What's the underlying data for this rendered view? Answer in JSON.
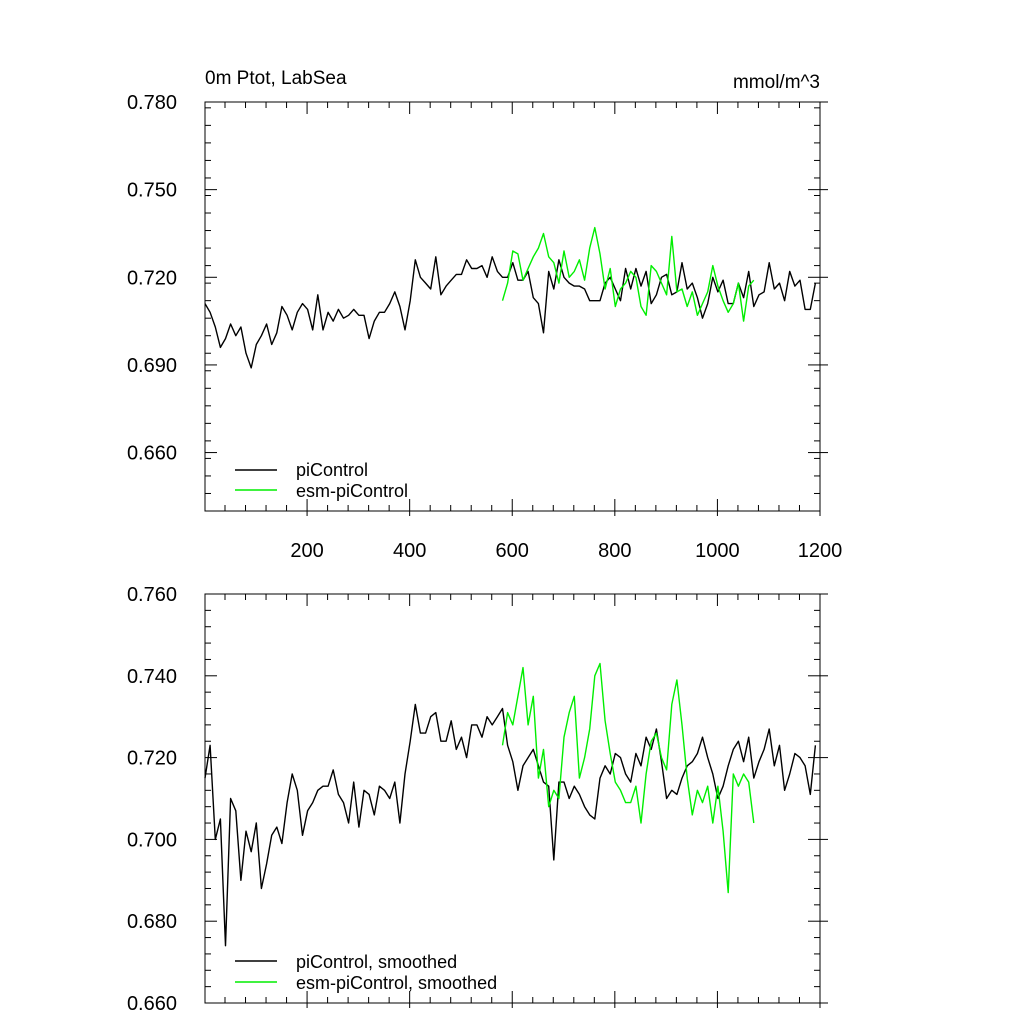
{
  "chart_data": [
    {
      "type": "line",
      "title_left": "0m Ptot, LabSea",
      "title_right": "mmol/m^3",
      "xlabel": "",
      "ylabel": "",
      "xlim": [
        1,
        1200
      ],
      "ylim": [
        0.64,
        0.78
      ],
      "x_ticks": [
        200,
        400,
        600,
        800,
        1000,
        1200
      ],
      "x_tick_labels": [
        "200",
        "400",
        "600",
        "800",
        "1000",
        "1200"
      ],
      "y_ticks": [
        0.66,
        0.69,
        0.72,
        0.75,
        0.78
      ],
      "y_tick_labels": [
        "0.660",
        "0.690",
        "0.720",
        "0.750",
        "0.780"
      ],
      "grid": false,
      "legend_position": "bottom-left",
      "series": [
        {
          "name": "piControl",
          "color": "#000000",
          "x_start": 1,
          "x_step": 10,
          "values": [
            0.711,
            0.708,
            0.703,
            0.696,
            0.699,
            0.704,
            0.7,
            0.703,
            0.694,
            0.689,
            0.697,
            0.7,
            0.704,
            0.697,
            0.701,
            0.71,
            0.707,
            0.702,
            0.708,
            0.711,
            0.709,
            0.702,
            0.714,
            0.702,
            0.708,
            0.705,
            0.709,
            0.706,
            0.707,
            0.709,
            0.707,
            0.707,
            0.699,
            0.705,
            0.708,
            0.708,
            0.711,
            0.715,
            0.71,
            0.702,
            0.712,
            0.726,
            0.72,
            0.718,
            0.716,
            0.727,
            0.714,
            0.717,
            0.719,
            0.721,
            0.721,
            0.726,
            0.723,
            0.723,
            0.724,
            0.72,
            0.727,
            0.722,
            0.72,
            0.72,
            0.725,
            0.719,
            0.719,
            0.722,
            0.713,
            0.711,
            0.701,
            0.722,
            0.716,
            0.726,
            0.72,
            0.718,
            0.717,
            0.717,
            0.716,
            0.712,
            0.712,
            0.712,
            0.718,
            0.72,
            0.716,
            0.712,
            0.723,
            0.716,
            0.723,
            0.717,
            0.722,
            0.711,
            0.714,
            0.72,
            0.721,
            0.714,
            0.715,
            0.725,
            0.716,
            0.718,
            0.713,
            0.706,
            0.711,
            0.72,
            0.715,
            0.719,
            0.711,
            0.711,
            0.718,
            0.713,
            0.722,
            0.71,
            0.714,
            0.715,
            0.725,
            0.716,
            0.718,
            0.712,
            0.722,
            0.717,
            0.719,
            0.709,
            0.709,
            0.718
          ]
        },
        {
          "name": "esm-piControl",
          "color": "#00ee00",
          "x_start": 581,
          "x_step": 10,
          "values": [
            0.712,
            0.718,
            0.729,
            0.728,
            0.719,
            0.723,
            0.727,
            0.73,
            0.735,
            0.727,
            0.725,
            0.718,
            0.729,
            0.72,
            0.722,
            0.726,
            0.719,
            0.73,
            0.737,
            0.728,
            0.716,
            0.723,
            0.71,
            0.716,
            0.718,
            0.722,
            0.72,
            0.71,
            0.707,
            0.724,
            0.722,
            0.718,
            0.714,
            0.734,
            0.715,
            0.716,
            0.71,
            0.715,
            0.707,
            0.711,
            0.715,
            0.724,
            0.717,
            0.712,
            0.708,
            0.711,
            0.718,
            0.705,
            0.717,
            0.719
          ]
        }
      ]
    },
    {
      "type": "line",
      "xlabel": "",
      "ylabel": "",
      "xlim": [
        1,
        1200
      ],
      "ylim": [
        0.66,
        0.76
      ],
      "x_ticks": [
        200,
        400,
        600,
        800,
        1000,
        1200
      ],
      "y_ticks": [
        0.66,
        0.68,
        0.7,
        0.72,
        0.74,
        0.76
      ],
      "y_tick_labels": [
        "0.660",
        "0.680",
        "0.700",
        "0.720",
        "0.740",
        "0.760"
      ],
      "grid": false,
      "legend_position": "bottom-left",
      "series": [
        {
          "name": "piControl, smoothed",
          "color": "#000000",
          "x_start": 1,
          "x_step": 10,
          "values": [
            0.715,
            0.723,
            0.7,
            0.705,
            0.674,
            0.71,
            0.707,
            0.69,
            0.702,
            0.697,
            0.704,
            0.688,
            0.694,
            0.701,
            0.703,
            0.699,
            0.709,
            0.716,
            0.712,
            0.701,
            0.707,
            0.709,
            0.712,
            0.713,
            0.713,
            0.717,
            0.711,
            0.709,
            0.704,
            0.714,
            0.703,
            0.712,
            0.711,
            0.706,
            0.713,
            0.712,
            0.71,
            0.714,
            0.704,
            0.716,
            0.724,
            0.733,
            0.726,
            0.726,
            0.73,
            0.731,
            0.724,
            0.724,
            0.729,
            0.722,
            0.725,
            0.72,
            0.728,
            0.728,
            0.725,
            0.73,
            0.728,
            0.73,
            0.732,
            0.723,
            0.719,
            0.712,
            0.718,
            0.72,
            0.722,
            0.718,
            0.714,
            0.713,
            0.695,
            0.714,
            0.714,
            0.71,
            0.713,
            0.711,
            0.708,
            0.706,
            0.705,
            0.715,
            0.718,
            0.716,
            0.721,
            0.72,
            0.716,
            0.714,
            0.721,
            0.718,
            0.725,
            0.722,
            0.727,
            0.719,
            0.71,
            0.712,
            0.711,
            0.715,
            0.718,
            0.719,
            0.721,
            0.725,
            0.72,
            0.716,
            0.71,
            0.713,
            0.718,
            0.722,
            0.724,
            0.719,
            0.725,
            0.715,
            0.719,
            0.722,
            0.727,
            0.718,
            0.723,
            0.712,
            0.716,
            0.721,
            0.72,
            0.718,
            0.711,
            0.723
          ]
        },
        {
          "name": "esm-piControl, smoothed",
          "color": "#00ee00",
          "x_start": 581,
          "x_step": 10,
          "values": [
            0.723,
            0.731,
            0.728,
            0.735,
            0.742,
            0.728,
            0.735,
            0.715,
            0.722,
            0.708,
            0.712,
            0.71,
            0.725,
            0.731,
            0.735,
            0.715,
            0.72,
            0.727,
            0.74,
            0.743,
            0.729,
            0.721,
            0.714,
            0.712,
            0.709,
            0.709,
            0.713,
            0.704,
            0.716,
            0.724,
            0.726,
            0.72,
            0.717,
            0.733,
            0.739,
            0.728,
            0.715,
            0.706,
            0.712,
            0.709,
            0.713,
            0.704,
            0.713,
            0.702,
            0.687,
            0.716,
            0.713,
            0.716,
            0.714,
            0.704
          ]
        }
      ]
    }
  ]
}
